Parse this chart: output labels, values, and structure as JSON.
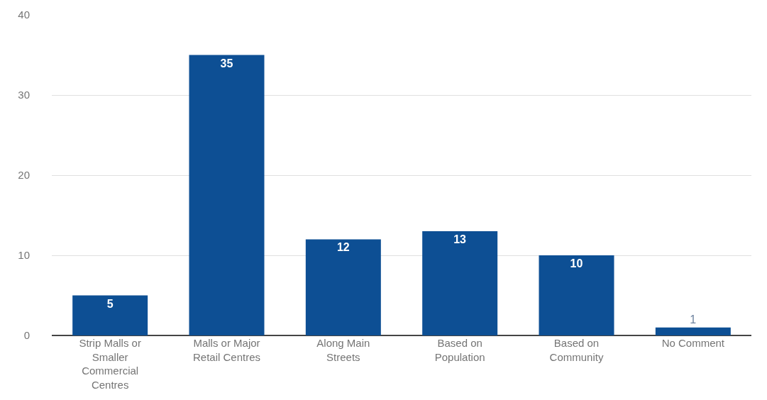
{
  "chart_data": {
    "type": "bar",
    "categories": [
      "Strip Malls or Smaller Commercial Centres",
      "Malls or Major Retail Centres",
      "Along Main Streets",
      "Based on Population",
      "Based on Community",
      "No Comment"
    ],
    "values": [
      5,
      35,
      12,
      13,
      10,
      1
    ],
    "color": "#0d4f94",
    "ylim": [
      0,
      40
    ],
    "yticks": [
      0,
      10,
      20,
      30,
      40
    ],
    "grid": "y",
    "data_labels": true
  }
}
